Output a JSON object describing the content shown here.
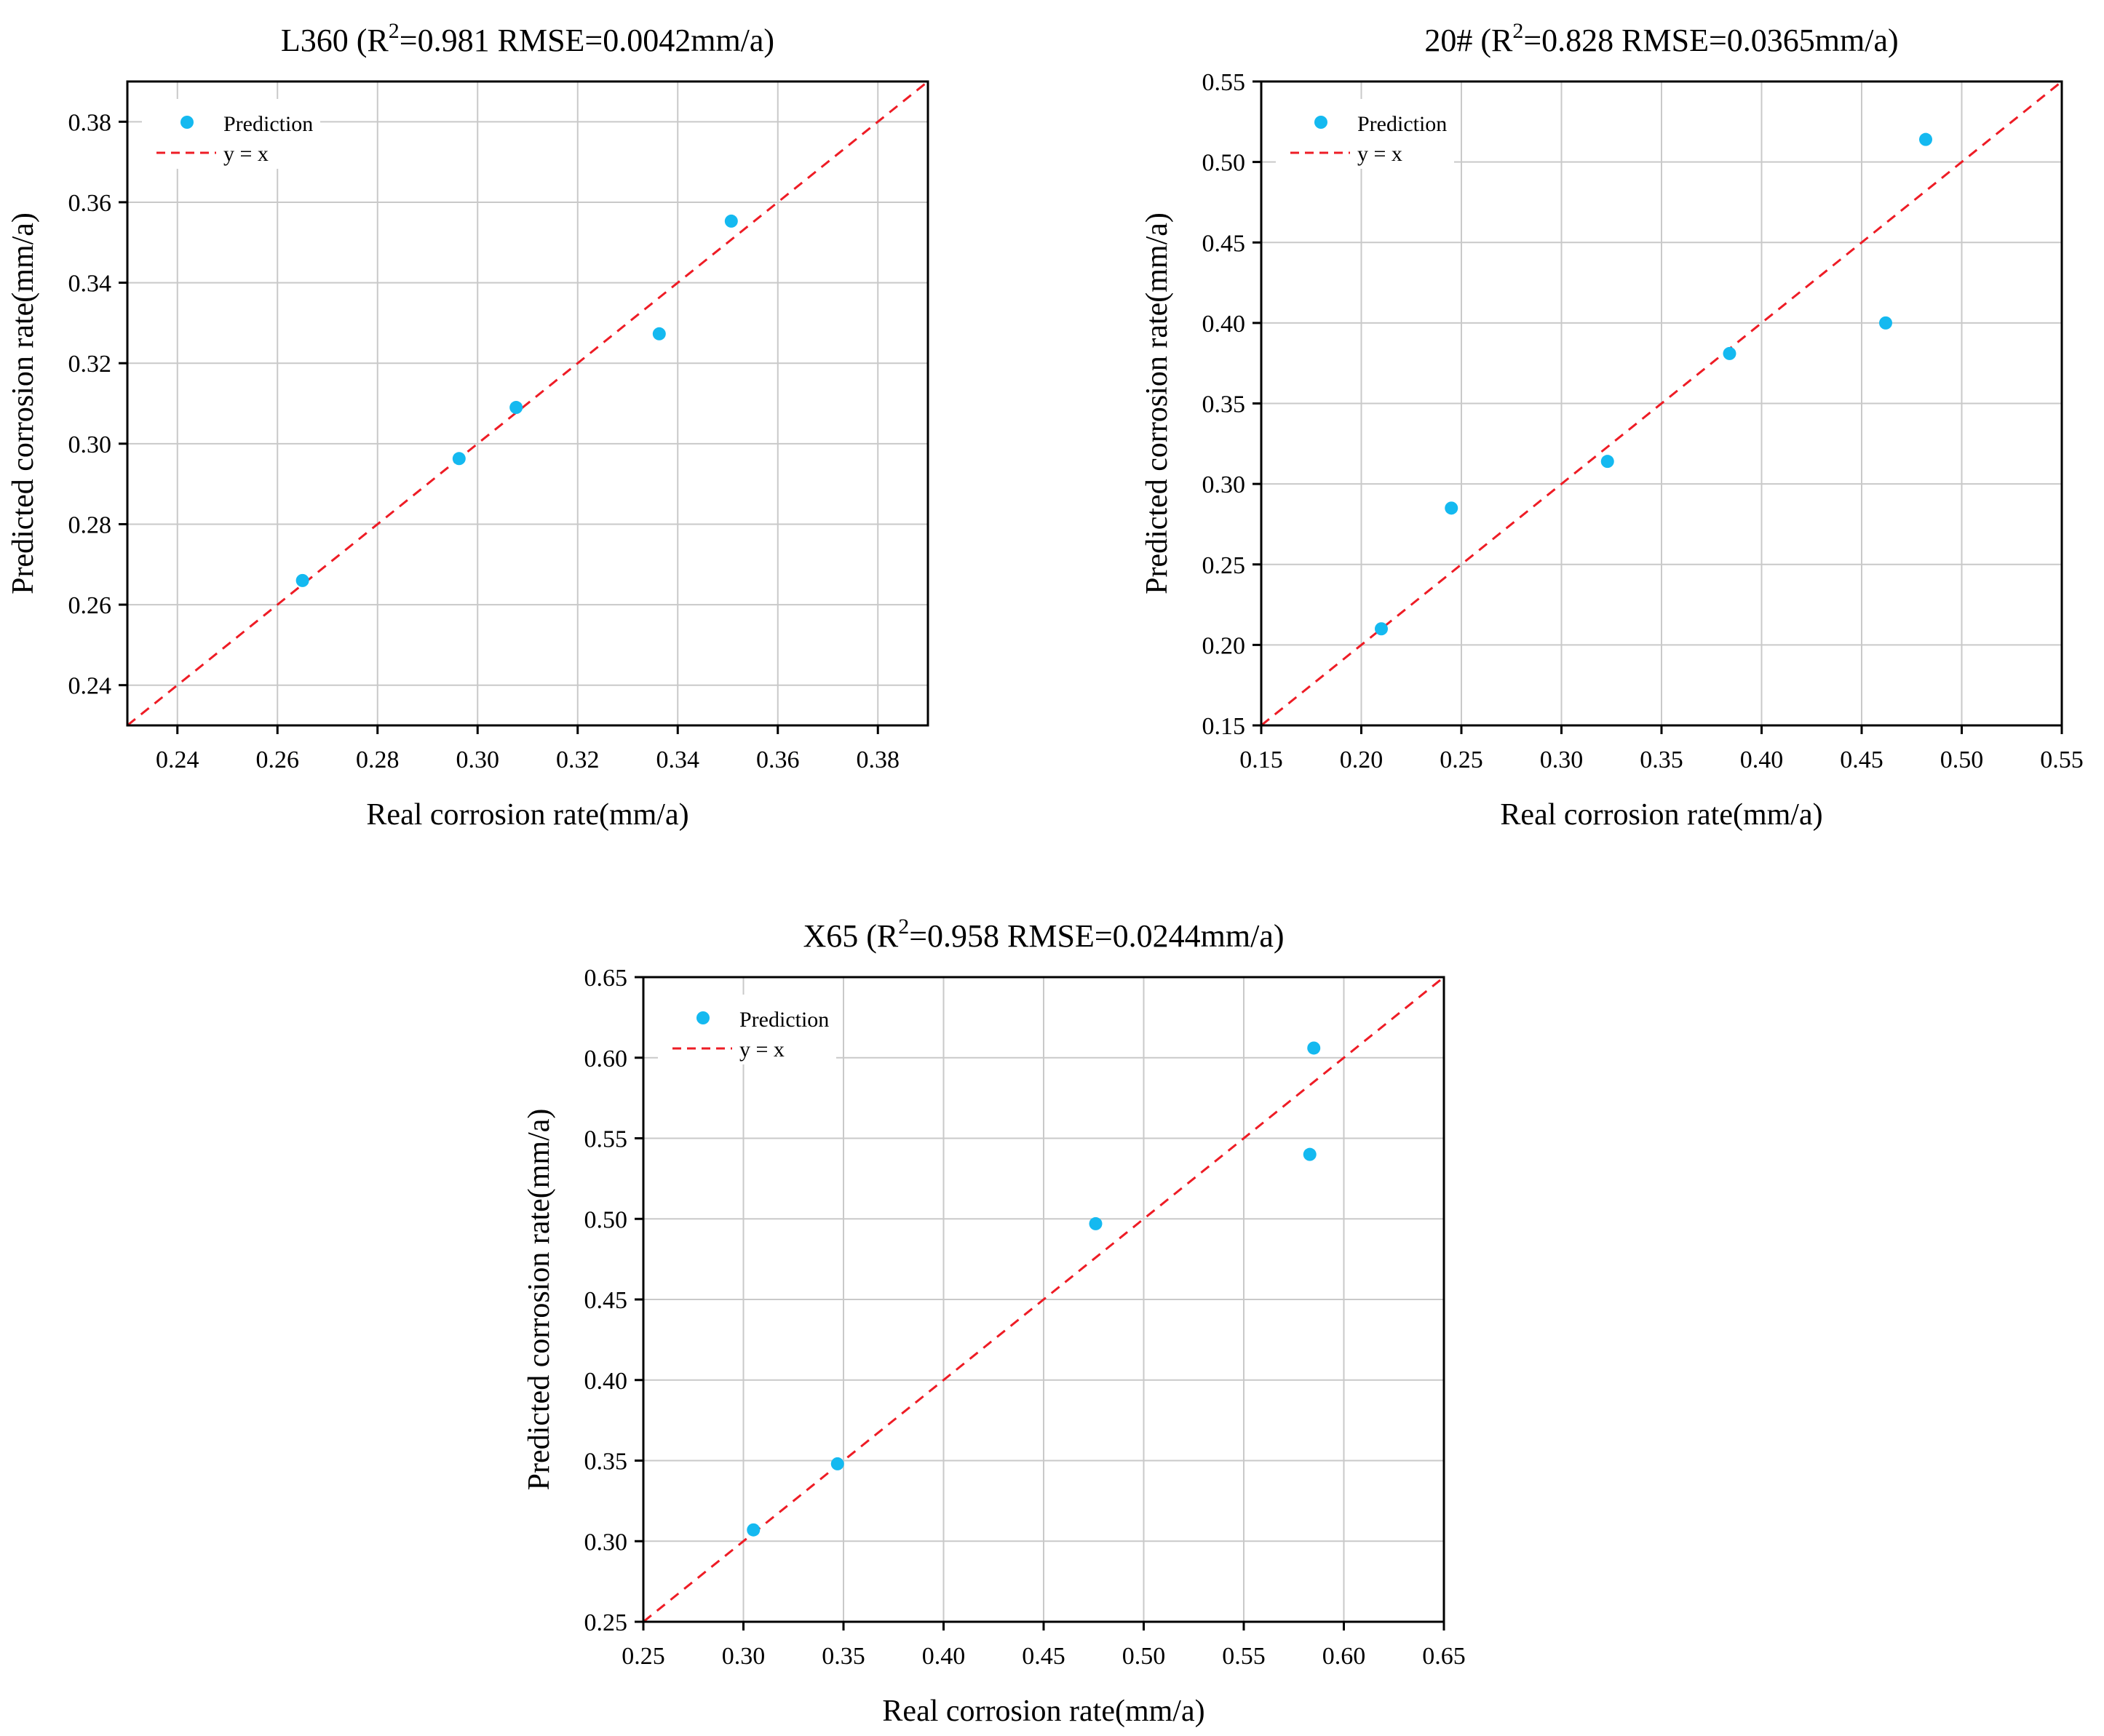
{
  "chart_data": [
    {
      "type": "scatter",
      "title_main": "L360  (R",
      "title_sup": "2",
      "title_rest": "=0.981 RMSE=0.0042mm/a)",
      "xlabel": "Real corrosion rate(mm/a)",
      "ylabel": "Predicted corrosion rate(mm/a)",
      "xlim": [
        0.23,
        0.39
      ],
      "ylim": [
        0.23,
        0.39
      ],
      "xticks": [
        0.24,
        0.26,
        0.28,
        0.3,
        0.32,
        0.34,
        0.36,
        0.38
      ],
      "yticks": [
        0.24,
        0.26,
        0.28,
        0.3,
        0.32,
        0.34,
        0.36,
        0.38
      ],
      "grid": true,
      "legend": "top-left",
      "series": [
        {
          "name": "Prediction",
          "kind": "scatter",
          "color": "#14b9f0",
          "x": [
            0.265,
            0.2963,
            0.3077,
            0.3363,
            0.3507
          ],
          "y": [
            0.266,
            0.2963,
            0.309,
            0.3273,
            0.3553
          ]
        },
        {
          "name": "y = x",
          "kind": "reference-line",
          "style": "dashed",
          "color": "#ee1c25"
        }
      ]
    },
    {
      "type": "scatter",
      "title_main": "20#  (R",
      "title_sup": "2",
      "title_rest": "=0.828 RMSE=0.0365mm/a)",
      "xlabel": "Real corrosion rate(mm/a)",
      "ylabel": "Predicted corrosion rate(mm/a)",
      "xlim": [
        0.15,
        0.55
      ],
      "ylim": [
        0.15,
        0.55
      ],
      "xticks": [
        0.15,
        0.2,
        0.25,
        0.3,
        0.35,
        0.4,
        0.45,
        0.5,
        0.55
      ],
      "yticks": [
        0.15,
        0.2,
        0.25,
        0.3,
        0.35,
        0.4,
        0.45,
        0.5,
        0.55
      ],
      "grid": true,
      "legend": "top-left",
      "series": [
        {
          "name": "Prediction",
          "kind": "scatter",
          "color": "#14b9f0",
          "x": [
            0.21,
            0.245,
            0.323,
            0.384,
            0.462,
            0.482
          ],
          "y": [
            0.21,
            0.285,
            0.314,
            0.381,
            0.4,
            0.514
          ]
        },
        {
          "name": "y = x",
          "kind": "reference-line",
          "style": "dashed",
          "color": "#ee1c25"
        }
      ]
    },
    {
      "type": "scatter",
      "title_main": "X65  (R",
      "title_sup": "2",
      "title_rest": "=0.958 RMSE=0.0244mm/a)",
      "xlabel": "Real corrosion rate(mm/a)",
      "ylabel": "Predicted corrosion rate(mm/a)",
      "xlim": [
        0.25,
        0.65
      ],
      "ylim": [
        0.25,
        0.65
      ],
      "xticks": [
        0.25,
        0.3,
        0.35,
        0.4,
        0.45,
        0.5,
        0.55,
        0.6,
        0.65
      ],
      "yticks": [
        0.25,
        0.3,
        0.35,
        0.4,
        0.45,
        0.5,
        0.55,
        0.6,
        0.65
      ],
      "grid": true,
      "legend": "top-left",
      "series": [
        {
          "name": "Prediction",
          "kind": "scatter",
          "color": "#14b9f0",
          "x": [
            0.305,
            0.347,
            0.476,
            0.583,
            0.585
          ],
          "y": [
            0.307,
            0.348,
            0.497,
            0.54,
            0.606
          ]
        },
        {
          "name": "y = x",
          "kind": "reference-line",
          "style": "dashed",
          "color": "#ee1c25"
        }
      ]
    }
  ]
}
